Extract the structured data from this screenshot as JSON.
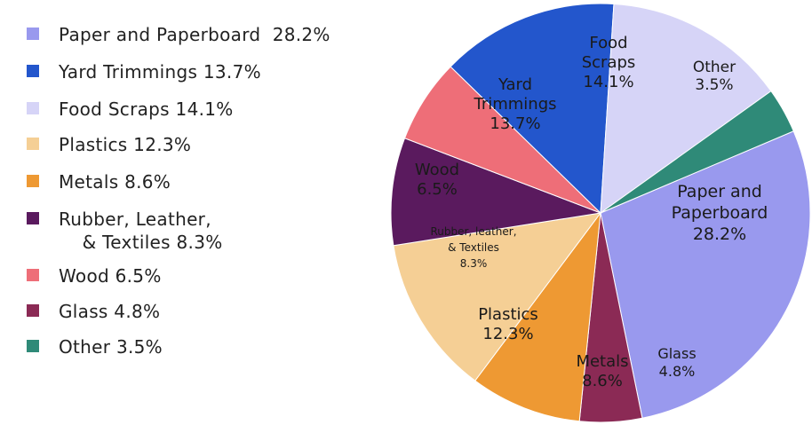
{
  "chart_data": {
    "type": "pie",
    "legend_position": "left",
    "slices": [
      {
        "name": "Paper and Paperboard",
        "value": 28.2,
        "color": "#9999ee",
        "legend_label": "Paper and Paperboard  28.2%",
        "slice_label": [
          "Paper and",
          "Paperboard",
          "28.2%"
        ]
      },
      {
        "name": "Glass",
        "value": 4.8,
        "color": "#8b2a55",
        "legend_label": "Glass 4.8%",
        "slice_label": [
          "Glass",
          "4.8%"
        ]
      },
      {
        "name": "Metals",
        "value": 8.6,
        "color": "#ee9933",
        "legend_label": "Metals 8.6%",
        "slice_label": [
          "Metals",
          "8.6%"
        ]
      },
      {
        "name": "Plastics",
        "value": 12.3,
        "color": "#f5cf95",
        "legend_label": "Plastics 12.3%",
        "slice_label": [
          "Plastics",
          "12.3%"
        ]
      },
      {
        "name": "Rubber, Leather, & Textiles",
        "value": 8.3,
        "color": "#5a1a5e",
        "legend_label": "Rubber, Leather,\n    & Textiles 8.3%",
        "slice_label": [
          "Rubber, leather,",
          "& Textiles",
          "8.3%"
        ]
      },
      {
        "name": "Wood",
        "value": 6.5,
        "color": "#ee6e78",
        "legend_label": "Wood 6.5%",
        "slice_label": [
          "Wood",
          "6.5%"
        ]
      },
      {
        "name": "Yard Trimmings",
        "value": 13.7,
        "color": "#2356cc",
        "legend_label": "Yard Trimmings 13.7%",
        "slice_label": [
          "Yard",
          "Trimmings",
          "13.7%"
        ]
      },
      {
        "name": "Food Scraps",
        "value": 14.1,
        "color": "#d6d4f7",
        "legend_label": "Food Scraps 14.1%",
        "slice_label": [
          "Food",
          "Scraps",
          "14.1%"
        ]
      },
      {
        "name": "Other",
        "value": 3.5,
        "color": "#2f8a78",
        "legend_label": "Other 3.5%",
        "slice_label": [
          "Other",
          "3.5%"
        ]
      }
    ],
    "legend_order": [
      "Paper and Paperboard",
      "Yard Trimmings",
      "Food Scraps",
      "Plastics",
      "Metals",
      "Rubber, Leather, & Textiles",
      "Wood",
      "Glass",
      "Other"
    ]
  }
}
